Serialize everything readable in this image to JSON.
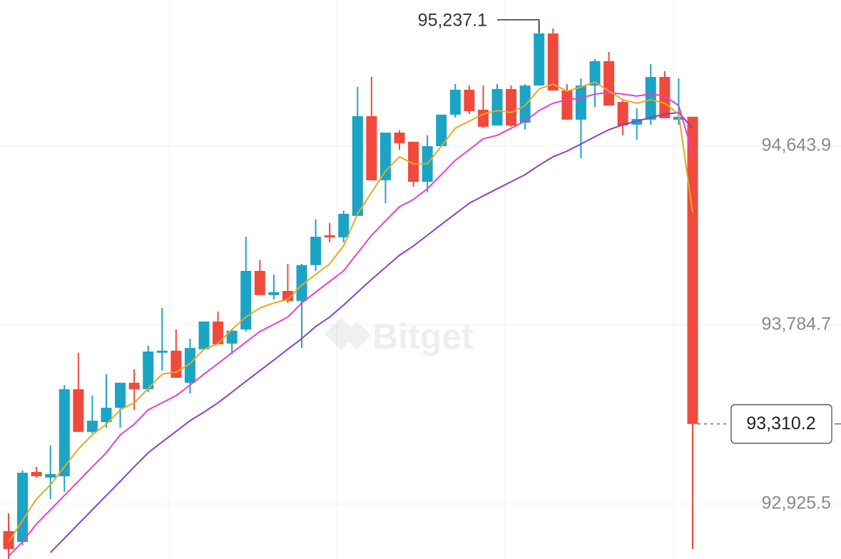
{
  "chart_data": {
    "type": "candlestick",
    "watermark": "Bitget",
    "up_color": "#1ba4c4",
    "down_color": "#ef4a3c",
    "grid": true,
    "ylim": [
      92661.9,
      95345.6
    ],
    "yticks": [
      {
        "value": 94643.9,
        "label": "94,643.9"
      },
      {
        "value": 93784.7,
        "label": "93,784.7"
      },
      {
        "value": 92925.5,
        "label": "92,925.5"
      }
    ],
    "open": [
      92796,
      92744,
      93080,
      93053,
      93059,
      93477,
      93272,
      93319,
      93388,
      93508,
      93477,
      93652,
      93662,
      93508,
      93669,
      93802,
      93696,
      93764,
      94045,
      93929,
      93949,
      93901,
      94073,
      94216,
      94206,
      94309,
      94788,
      94480,
      94709,
      94665,
      94473,
      94644,
      94795,
      94915,
      94819,
      94743,
      94918,
      94757,
      94935,
      95185,
      94911,
      94771,
      94935,
      95052,
      94856,
      94747,
      94771,
      94976,
      94771,
      94785
    ],
    "high": [
      92881,
      93087,
      93104,
      93207,
      93497,
      93652,
      93446,
      93549,
      93508,
      93573,
      93686,
      93867,
      93764,
      93720,
      93802,
      93850,
      93764,
      94209,
      94097,
      94028,
      94079,
      94079,
      94292,
      94275,
      94333,
      94928,
      94976,
      94709,
      94720,
      94665,
      94696,
      94795,
      94942,
      94935,
      94935,
      94942,
      94935,
      94942,
      95237.1,
      95209,
      94942,
      94969,
      95062,
      95096,
      94867,
      94826,
      95038,
      95004,
      94969,
      94785
    ],
    "low": [
      92662,
      92727,
      93053,
      92950,
      92984,
      93272,
      93265,
      93292,
      93292,
      93378,
      93463,
      93566,
      93532,
      93456,
      93669,
      93693,
      93645,
      93754,
      93929,
      93908,
      93891,
      93675,
      94045,
      94182,
      94182,
      94309,
      94480,
      94370,
      94627,
      94449,
      94422,
      94644,
      94781,
      94798,
      94730,
      94743,
      94737,
      94723,
      94935,
      94911,
      94771,
      94586,
      94832,
      94839,
      94696,
      94675,
      94747,
      94778,
      94747,
      92710
    ],
    "close": [
      92710,
      93076,
      93059,
      93070,
      93477,
      93272,
      93326,
      93388,
      93508,
      93477,
      93658,
      93662,
      93532,
      93675,
      93802,
      93693,
      93758,
      94045,
      93929,
      93943,
      93901,
      94073,
      94209,
      94206,
      94319,
      94788,
      94480,
      94709,
      94658,
      94473,
      94644,
      94795,
      94915,
      94812,
      94737,
      94918,
      94743,
      94935,
      95185,
      94911,
      94771,
      94935,
      95052,
      94839,
      94743,
      94774,
      94976,
      94778,
      94785,
      93310.2
    ],
    "series": [
      {
        "color": "#8f3fc0",
        "values": [
          null,
          null,
          null,
          92693,
          92761,
          92830,
          92898,
          92967,
          93035,
          93104,
          93172,
          93224,
          93275,
          93326,
          93367,
          93412,
          93463,
          93515,
          93566,
          93617,
          93669,
          93720,
          93778,
          93823,
          93881,
          93943,
          94004,
          94062,
          94120,
          94165,
          94216,
          94268,
          94319,
          94370,
          94405,
          94439,
          94473,
          94507,
          94552,
          94593,
          94620,
          94654,
          94689,
          94723,
          94747,
          94764,
          94781,
          94798,
          94805,
          94730
        ]
      },
      {
        "color": "#e83fcf",
        "values": [
          92676,
          92744,
          92830,
          92898,
          92967,
          93035,
          93104,
          93172,
          93258,
          93309,
          93378,
          93412,
          93446,
          93497,
          93549,
          93600,
          93652,
          93703,
          93754,
          93788,
          93823,
          93891,
          93943,
          93994,
          94045,
          94131,
          94216,
          94285,
          94353,
          94388,
          94439,
          94507,
          94576,
          94627,
          94679,
          94696,
          94730,
          94764,
          94815,
          94850,
          94867,
          94874,
          94894,
          94901,
          94894,
          94884,
          94894,
          94884,
          94839,
          94610
        ]
      },
      {
        "color": "#e8a920",
        "values": [
          92744,
          92847,
          92950,
          93018,
          93104,
          93190,
          93258,
          93309,
          93378,
          93412,
          93480,
          93549,
          93559,
          93600,
          93669,
          93696,
          93764,
          93823,
          93867,
          93891,
          93908,
          93977,
          94028,
          94079,
          94165,
          94319,
          94422,
          94524,
          94593,
          94559,
          94559,
          94644,
          94730,
          94764,
          94798,
          94815,
          94805,
          94839,
          94918,
          94942,
          94908,
          94928,
          94952,
          94908,
          94867,
          94850,
          94867,
          94850,
          94798,
          94326
        ]
      }
    ],
    "annotations": [
      {
        "text": "95,237.1",
        "value": 95237.1
      },
      {
        "text": "93,310.2",
        "value": 93310.2
      }
    ]
  }
}
